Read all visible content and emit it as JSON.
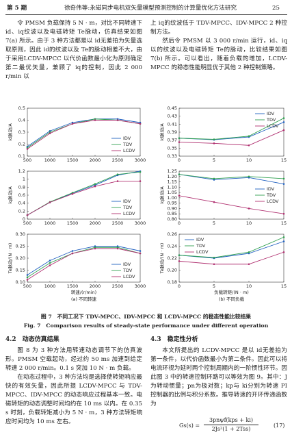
{
  "header": {
    "issue": "第 5 期",
    "running_title": "徐奇伟等:永磁同步电机双矢量模型预测控制的计算量优化方法研究",
    "page": "25"
  },
  "top_left": "令 PMSM 负载保持 5 N · m，对比不同转速下 id、iq纹波以及电磁转矩 Te脉动，仿真结果如图 7(a) 所示。由于 3 种方法都是以 id无差拍为矢量选取原则，因此 id的纹波以及 Te的脉动相差不大，由于采用LCDV-MPCC 以代价函数最小化为原则确定第二最优矢量，兼顾了 iq的控制，因此 2 000 r/min 以",
  "top_right": [
    "上 iq的纹波低于 TDV-MPCC、IDV-MPCC 2 种控制方法。",
    "然后令 PMSM 以 3 000 r/min 运行，id、iq以的纹波以及电磁转矩 Te的脉动，比较结果如图 7(b) 所示。可以看出，随着负载的增加，LCDV-MPCC 的稳态性能明显优于其他 2 种控制策略。"
  ],
  "figure": {
    "caption_cn": "图 7　不同工况下 TDV-MPCC、IDV-MPCC 和 LCDV-MPCC 的稳态性能比较结果",
    "caption_en": "Fig. 7　Comparison results of steady-state performance under different operation"
  },
  "chart_data": [
    {
      "type": "line",
      "ylabel": "id脉动/A",
      "x": [
        500,
        1000,
        1500,
        2000,
        2500,
        3000
      ],
      "xlim": [
        500,
        3000
      ],
      "xticks": [
        500,
        1000,
        1500,
        2000,
        2500,
        3000
      ],
      "ylim": [
        0.1,
        0.5
      ],
      "yticks": [
        0.1,
        0.2,
        0.3,
        0.4,
        0.5
      ],
      "legend": "lower right",
      "series": [
        {
          "name": "IDV",
          "color": "#2060c0",
          "values": [
            0.18,
            0.31,
            0.38,
            0.41,
            0.41,
            0.38
          ]
        },
        {
          "name": "TDV",
          "color": "#30a050",
          "values": [
            0.17,
            0.3,
            0.37,
            0.41,
            0.4,
            0.37
          ]
        },
        {
          "name": "LCDV",
          "color": "#b03070",
          "values": [
            0.16,
            0.29,
            0.37,
            0.4,
            0.4,
            0.37
          ]
        }
      ]
    },
    {
      "type": "line",
      "ylabel": "id脉动/A",
      "x": [
        0,
        5,
        10,
        15
      ],
      "xlim": [
        0,
        15
      ],
      "xticks": [
        0,
        5,
        10,
        15
      ],
      "ylim": [
        0.33,
        0.45
      ],
      "yticks": [
        0.33,
        0.35,
        0.37,
        0.39,
        0.41,
        0.43,
        0.45
      ],
      "legend": "upper right",
      "series": [
        {
          "name": "IDV",
          "color": "#2060c0",
          "values": [
            0.375,
            0.371,
            0.378,
            0.415
          ]
        },
        {
          "name": "TDV",
          "color": "#30a050",
          "values": [
            0.375,
            0.372,
            0.38,
            0.425
          ]
        },
        {
          "name": "LCDV",
          "color": "#b03070",
          "values": [
            0.365,
            0.362,
            0.357,
            0.395
          ]
        }
      ]
    },
    {
      "type": "line",
      "ylabel": "iq脉动/A",
      "x": [
        500,
        1000,
        1500,
        2000,
        2500,
        3000
      ],
      "xlim": [
        500,
        3000
      ],
      "xticks": [
        500,
        1000,
        1500,
        2000,
        2500,
        3000
      ],
      "ylim": [
        0,
        1.2
      ],
      "yticks": [
        0,
        0.2,
        0.4,
        0.6,
        0.8,
        1,
        1.2
      ],
      "legend": "lower right",
      "series": [
        {
          "name": "IDV",
          "color": "#2060c0",
          "values": [
            0.1,
            0.42,
            0.65,
            0.85,
            1.1,
            1.2
          ]
        },
        {
          "name": "TDV",
          "color": "#30a050",
          "values": [
            0.1,
            0.43,
            0.66,
            0.88,
            1.12,
            1.18
          ]
        },
        {
          "name": "LCDV",
          "color": "#b03070",
          "values": [
            0.1,
            0.42,
            0.63,
            0.82,
            0.95,
            0.95
          ]
        }
      ]
    },
    {
      "type": "line",
      "ylabel": "iq脉动/A",
      "x": [
        0,
        5,
        10,
        15
      ],
      "xlim": [
        0,
        15
      ],
      "xticks": [
        0,
        5,
        10,
        15
      ],
      "ylim": [
        0.8,
        1.25
      ],
      "yticks": [
        {
          "value": 0.8,
          "label": "0.80"
        },
        0.85,
        {
          "value": 0.9,
          "label": "0.90"
        },
        0.95,
        {
          "value": 1,
          "label": "1.00"
        },
        1.05,
        {
          "value": 1.1,
          "label": "1.10"
        },
        1.15,
        {
          "value": 1.2,
          "label": "1.20"
        },
        1.25
      ],
      "legend": "right",
      "series": [
        {
          "name": "IDV",
          "color": "#2060c0",
          "values": [
            1.22,
            1.17,
            1.19,
            1.13
          ]
        },
        {
          "name": "TDV",
          "color": "#30a050",
          "values": [
            1.22,
            1.18,
            1.2,
            1.18
          ]
        },
        {
          "name": "LCDV",
          "color": "#b03070",
          "values": [
            1.02,
            0.96,
            0.9,
            0.85
          ]
        }
      ]
    },
    {
      "type": "line",
      "ylabel": "Te脉动/(N · m)",
      "xlabel": "转速/(r/min)",
      "caption": "(a) 不同转速",
      "x": [
        500,
        1000,
        1500,
        2000,
        2500,
        3000
      ],
      "xlim": [
        500,
        3000
      ],
      "xticks": [
        500,
        1000,
        1500,
        2000,
        2500,
        3000
      ],
      "ylim": [
        0.1,
        0.3
      ],
      "yticks": [
        {
          "value": 0.1,
          "label": "0.10"
        },
        0.15,
        {
          "value": 0.2,
          "label": "0.20"
        },
        0.25,
        {
          "value": 0.3,
          "label": "0.30"
        }
      ],
      "legend": "lower right",
      "series": [
        {
          "name": "IDV",
          "color": "#2060c0",
          "values": [
            0.13,
            0.19,
            0.23,
            0.25,
            0.25,
            0.23
          ]
        },
        {
          "name": "TDV",
          "color": "#30a050",
          "values": [
            0.12,
            0.18,
            0.22,
            0.245,
            0.245,
            0.22
          ]
        },
        {
          "name": "LCDV",
          "color": "#b03070",
          "values": [
            0.11,
            0.17,
            0.22,
            0.24,
            0.24,
            0.22
          ]
        }
      ]
    },
    {
      "type": "line",
      "ylabel": "Te脉动/(N · m)",
      "xlabel": "负载转矩/(N · m)",
      "caption": "(b) 不同负载",
      "x": [
        0,
        5,
        10,
        15
      ],
      "xlim": [
        0,
        15
      ],
      "xticks": [
        0,
        5,
        10,
        15
      ],
      "ylim": [
        0.18,
        0.26
      ],
      "yticks": [
        0.18,
        {
          "value": 0.2,
          "label": "0.20"
        },
        0.22,
        0.24,
        0.26
      ],
      "legend": "upper left",
      "series": [
        {
          "name": "IDV",
          "color": "#2060c0",
          "values": [
            0.225,
            0.22,
            0.228,
            0.248
          ]
        },
        {
          "name": "TDV",
          "color": "#30a050",
          "values": [
            0.225,
            0.221,
            0.23,
            0.255
          ]
        },
        {
          "name": "LCDV",
          "color": "#b03070",
          "values": [
            0.215,
            0.21,
            0.21,
            0.23
          ]
        }
      ]
    }
  ],
  "section_42": {
    "heading": "4.2　动态仿真结果",
    "paragraphs": [
      "图 8 为 3 种方法用转速动态调节下的仿真波形。PMSM 空载起动，经过约 50 ms 加速到给定转速 2 000 r/min。0.1 s 突加 10 N · m 负载。",
      "在动态过程中，3 种方法均是选择使转矩响应最快的有效矢量，因此所提 LCDV-MPCC 与 TDV-MPCC、IDV-MPCC 的动态响应过程基本一致。电磁转矩的动态调整时间均约在 10 ms 以内。在 0.35 s 时刻，负载转矩减小为 5 N · m，3 种方法转矩响应时间均为 10 ms 左右。"
    ]
  },
  "section_43": {
    "heading": "4.3　稳定性分析",
    "paragraph": "本文所提出的 LCDV-MPCC 是以 id无差拍为第一条件，以代价函数最小为第二条件。因此可以将电流环视为延时两个控制周期内的一阶惯性环节。因此图 3 中的转速控制环路可以等效为图 9。其中：J 为转动惯量；pn为极对数；kp与 ki分别为转速 PI 控制器的比例与积分系数。推导转速的开环传递函数为",
    "equation": {
      "lhs": "Gs(s) =",
      "numerator": "3pnψf(kps + ki)",
      "denominator": "2Js²(1 + 2Tss)",
      "number": "(17)"
    }
  }
}
